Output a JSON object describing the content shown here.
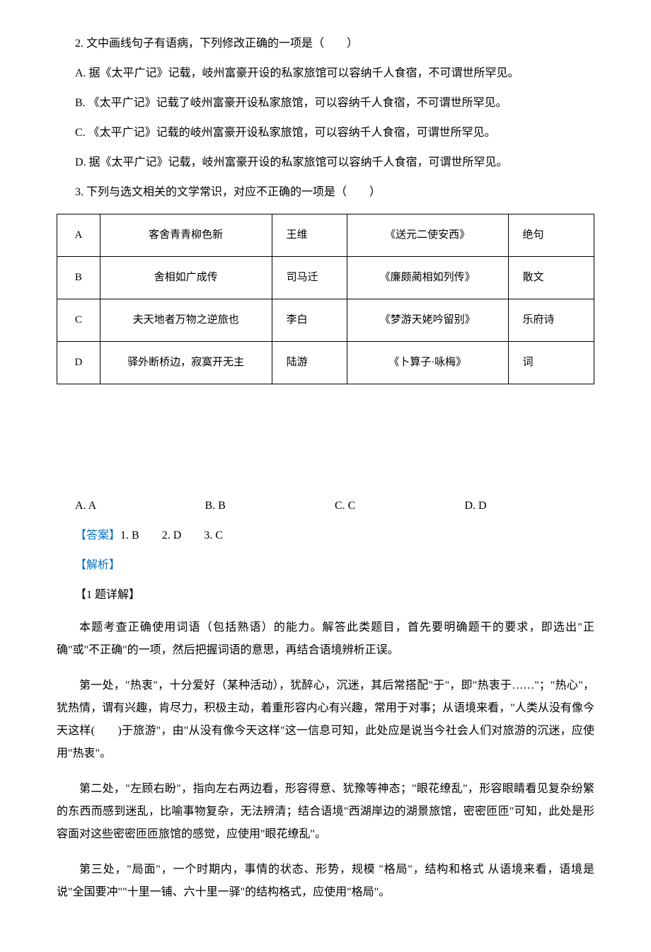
{
  "q2": {
    "stem": "2. 文中画线句子有语病，下列修改正确的一项是（　　）",
    "options": {
      "A": "A. 据《太平广记》记载，岐州富豪开设的私家旅馆可以容纳千人食宿，不可谓世所罕见。",
      "B": "B. 《太平广记》记载了岐州富豪开设私家旅馆，可以容纳千人食宿，不可谓世所罕见。",
      "C": "C. 《太平广记》记载的岐州富豪开设私家旅馆，可以容纳千人食宿，可谓世所罕见。",
      "D": "D. 据《太平广记》记载，岐州富豪开设的私家旅馆可以容纳千人食宿，可谓世所罕见。"
    }
  },
  "q3": {
    "stem": "3. 下列与选文相关的文学常识，对应不正确的一项是（　　）",
    "table": {
      "rowA": {
        "letter": "A",
        "verse": "客舍青青柳色新",
        "author": "王维",
        "title": "《送元二使安西》",
        "genre": "绝句"
      },
      "rowB": {
        "letter": "B",
        "verse": "舍相如广成传",
        "author": "司马迁",
        "title": "《廉颇蔺相如列传》",
        "genre": "散文"
      },
      "rowC": {
        "letter": "C",
        "verse": "夫天地者万物之逆旅也",
        "author": "李白",
        "title": "《梦游天姥吟留别》",
        "genre": "乐府诗"
      },
      "rowD": {
        "letter": "D",
        "verse": "驿外断桥边，寂寞开无主",
        "author": "陆游",
        "title": "《卜算子·咏梅》",
        "genre": "词"
      }
    },
    "options": {
      "A": "A. A",
      "B": "B. B",
      "C": "C. C",
      "D": "D. D"
    }
  },
  "answer": {
    "label": "【答案】",
    "values": "1. B　　2. D　　3. C"
  },
  "analysis": {
    "label": "【解析】",
    "sub1": {
      "heading": "【1 题详解】",
      "p1": "本题考查正确使用词语（包括熟语）的能力。解答此类题目，首先要明确题干的要求，即选出\"正确\"或\"不正确\"的一项，然后把握词语的意思，再结合语境辨析正误。",
      "p2": "第一处，\"热衷\"，十分爱好（某种活动），犹醉心，沉迷，其后常搭配\"于\"，即\"热衷于……\"；\"热心\"，犹热情，谓有兴趣，肯尽力，积极主动，着重形容内心有兴趣，常用于对事；从语境来看，\"人类从没有像今天这样(　　)于旅游\"，由\"从没有像今天这样\"这一信息可知，此处应是说当今社会人们对旅游的沉迷，应使用\"热衷\"。",
      "p3": "第二处，\"左顾右盼\"，指向左右两边看，形容得意、犹豫等神态；\"眼花缭乱\"，形容眼睛看见复杂纷繁的东西而感到迷乱，比喻事物复杂，无法辨清；结合语境\"西湖岸边的湖景旅馆，密密匝匝\"可知，此处是形容面对这些密密匝匝旅馆的感觉，应使用\"眼花缭乱\"。",
      "p4": "第三处，\"局面\"，一个时期内，事情的状态、形势，规模 \"格局\"，结构和格式 从语境来看，语境是说\"全国要冲\"\"十里一铺、六十里一驿\"的结构格式，应使用\"格局\"。"
    }
  },
  "colors": {
    "text": "#000000",
    "accent": "#0070c0",
    "background": "#ffffff",
    "border": "#000000"
  },
  "typography": {
    "body_fontsize": 16,
    "font_family": "SimSun",
    "line_height": 2
  }
}
